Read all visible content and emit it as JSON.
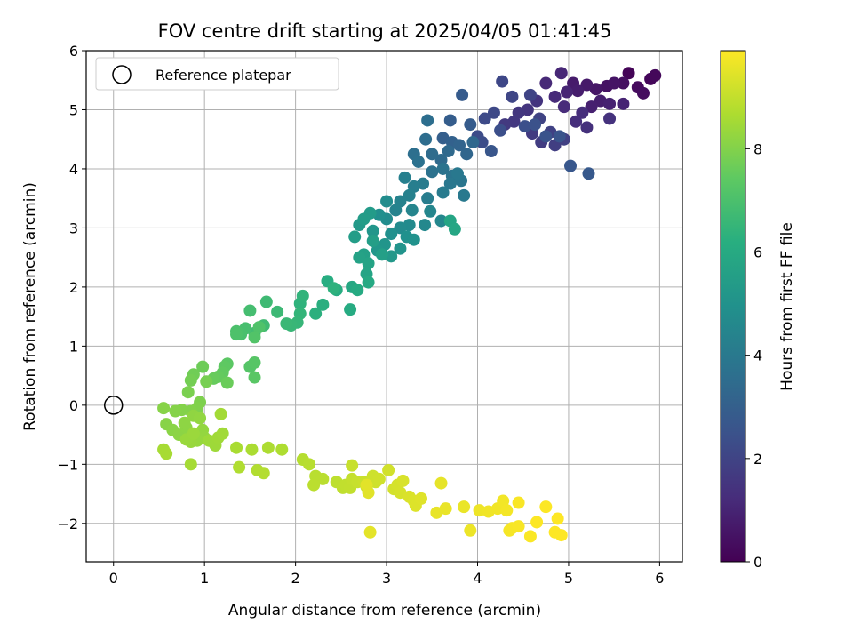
{
  "chart_data": {
    "type": "scatter",
    "title": "FOV centre drift starting at 2025/04/05 01:41:45",
    "xlabel": "Angular distance from reference (arcmin)",
    "ylabel": "Rotation from reference (arcmin)",
    "colorbar_label": "Hours from first FF file",
    "xlim": [
      -0.3,
      6.25
    ],
    "ylim": [
      -2.65,
      6.0
    ],
    "xticks": [
      0,
      1,
      2,
      3,
      4,
      5,
      6
    ],
    "yticks": [
      -2,
      -1,
      0,
      1,
      2,
      3,
      4,
      5,
      6
    ],
    "xtick_labels": [
      "0",
      "1",
      "2",
      "3",
      "4",
      "5",
      "6"
    ],
    "ytick_labels": [
      "−2",
      "−1",
      "0",
      "1",
      "2",
      "3",
      "4",
      "5",
      "6"
    ],
    "colorbar_range": [
      0,
      9.9
    ],
    "colorbar_ticks": [
      0,
      2,
      4,
      6,
      8
    ],
    "colorbar_tick_labels": [
      "0",
      "2",
      "4",
      "6",
      "8"
    ],
    "colormap": "viridis",
    "grid": true,
    "legend": {
      "location": "top-left",
      "entries": [
        "Reference platepar"
      ]
    },
    "reference_point": {
      "x": 0,
      "y": 0
    },
    "points": [
      [
        5.66,
        5.62,
        0.1
      ],
      [
        5.9,
        5.52,
        0.15
      ],
      [
        5.95,
        5.58,
        0.2
      ],
      [
        5.76,
        5.38,
        0.3
      ],
      [
        5.82,
        5.28,
        0.35
      ],
      [
        5.6,
        5.45,
        0.4
      ],
      [
        5.42,
        5.4,
        0.5
      ],
      [
        5.5,
        5.45,
        0.55
      ],
      [
        5.3,
        5.35,
        0.6
      ],
      [
        5.2,
        5.42,
        0.7
      ],
      [
        5.05,
        5.45,
        0.75
      ],
      [
        5.1,
        5.32,
        0.8
      ],
      [
        5.35,
        5.15,
        0.85
      ],
      [
        5.25,
        5.05,
        0.9
      ],
      [
        5.45,
        5.1,
        0.95
      ],
      [
        5.6,
        5.1,
        1.0
      ],
      [
        4.98,
        5.3,
        1.05
      ],
      [
        4.92,
        5.62,
        1.1
      ],
      [
        4.75,
        5.45,
        1.15
      ],
      [
        4.85,
        5.22,
        1.2
      ],
      [
        4.95,
        5.05,
        1.25
      ],
      [
        5.15,
        4.95,
        1.3
      ],
      [
        5.08,
        4.8,
        1.35
      ],
      [
        5.2,
        4.7,
        1.4
      ],
      [
        5.45,
        4.85,
        1.45
      ],
      [
        4.65,
        5.15,
        1.5
      ],
      [
        4.55,
        5.0,
        1.55
      ],
      [
        4.45,
        4.95,
        1.6
      ],
      [
        4.4,
        4.8,
        1.65
      ],
      [
        4.3,
        4.75,
        1.7
      ],
      [
        4.6,
        4.6,
        1.75
      ],
      [
        4.7,
        4.45,
        1.8
      ],
      [
        4.85,
        4.4,
        1.85
      ],
      [
        4.95,
        4.5,
        1.9
      ],
      [
        4.8,
        4.62,
        1.95
      ],
      [
        4.68,
        4.85,
        2.0
      ],
      [
        4.58,
        5.25,
        2.05
      ],
      [
        4.38,
        5.22,
        2.1
      ],
      [
        4.27,
        5.48,
        2.15
      ],
      [
        4.18,
        4.95,
        2.2
      ],
      [
        4.08,
        4.85,
        2.25
      ],
      [
        4.0,
        4.55,
        2.3
      ],
      [
        4.05,
        4.45,
        2.35
      ],
      [
        4.25,
        4.65,
        2.4
      ],
      [
        4.52,
        4.72,
        2.45
      ],
      [
        4.63,
        4.75,
        2.5
      ],
      [
        4.75,
        4.55,
        2.55
      ],
      [
        4.9,
        4.55,
        2.6
      ],
      [
        4.15,
        4.3,
        2.65
      ],
      [
        5.02,
        4.05,
        2.7
      ],
      [
        5.22,
        3.92,
        2.8
      ],
      [
        3.83,
        5.25,
        2.85
      ],
      [
        3.92,
        4.75,
        2.9
      ],
      [
        3.7,
        4.82,
        2.95
      ],
      [
        3.62,
        4.52,
        3.0
      ],
      [
        3.72,
        4.45,
        3.1
      ],
      [
        3.8,
        4.4,
        3.2
      ],
      [
        3.88,
        4.25,
        3.3
      ],
      [
        3.95,
        4.45,
        3.35
      ],
      [
        3.68,
        4.3,
        3.4
      ],
      [
        3.6,
        4.15,
        3.45
      ],
      [
        3.5,
        4.25,
        3.5
      ],
      [
        3.43,
        4.5,
        3.55
      ],
      [
        3.45,
        4.82,
        3.6
      ],
      [
        3.3,
        4.25,
        3.65
      ],
      [
        3.35,
        4.12,
        3.7
      ],
      [
        3.5,
        3.95,
        3.75
      ],
      [
        3.62,
        4.0,
        3.8
      ],
      [
        3.72,
        3.88,
        3.85
      ],
      [
        3.82,
        3.8,
        3.9
      ],
      [
        3.7,
        3.75,
        3.95
      ],
      [
        3.78,
        3.92,
        4.0
      ],
      [
        3.85,
        3.55,
        4.05
      ],
      [
        3.62,
        3.6,
        4.1
      ],
      [
        3.4,
        3.75,
        4.15
      ],
      [
        3.45,
        3.5,
        4.2
      ],
      [
        3.3,
        3.7,
        4.25
      ],
      [
        3.2,
        3.85,
        4.3
      ],
      [
        3.25,
        3.55,
        4.35
      ],
      [
        3.15,
        3.45,
        4.4
      ],
      [
        3.1,
        3.3,
        4.45
      ],
      [
        3.28,
        3.3,
        4.5
      ],
      [
        3.48,
        3.28,
        4.55
      ],
      [
        3.6,
        3.12,
        4.6
      ],
      [
        3.42,
        3.05,
        4.65
      ],
      [
        3.25,
        3.05,
        4.7
      ],
      [
        3.15,
        3.0,
        4.75
      ],
      [
        3.0,
        3.15,
        4.8
      ],
      [
        3.0,
        3.45,
        4.85
      ],
      [
        2.92,
        3.22,
        4.9
      ],
      [
        3.05,
        2.9,
        4.95
      ],
      [
        3.22,
        2.85,
        5.0
      ],
      [
        3.3,
        2.8,
        5.05
      ],
      [
        3.15,
        2.65,
        5.1
      ],
      [
        2.98,
        2.72,
        5.15
      ],
      [
        2.85,
        2.95,
        5.2
      ],
      [
        2.9,
        2.62,
        5.25
      ],
      [
        3.05,
        2.52,
        5.3
      ],
      [
        2.7,
        3.05,
        5.35
      ],
      [
        2.82,
        3.25,
        5.4
      ],
      [
        2.75,
        3.15,
        5.45
      ],
      [
        2.65,
        2.85,
        5.5
      ],
      [
        2.85,
        2.78,
        5.55
      ],
      [
        2.95,
        2.55,
        5.6
      ],
      [
        2.75,
        2.55,
        5.65
      ],
      [
        2.7,
        2.5,
        5.7
      ],
      [
        2.8,
        2.4,
        5.75
      ],
      [
        2.78,
        2.22,
        5.8
      ],
      [
        3.7,
        3.12,
        5.85
      ],
      [
        3.75,
        2.98,
        5.9
      ],
      [
        2.62,
        2.0,
        5.95
      ],
      [
        2.8,
        2.08,
        6.0
      ],
      [
        2.68,
        1.95,
        6.05
      ],
      [
        2.6,
        1.62,
        6.1
      ],
      [
        2.45,
        1.95,
        6.15
      ],
      [
        2.35,
        2.1,
        6.2
      ],
      [
        2.3,
        1.7,
        6.25
      ],
      [
        2.22,
        1.55,
        6.3
      ],
      [
        2.42,
        1.98,
        6.35
      ],
      [
        2.05,
        1.72,
        6.4
      ],
      [
        2.08,
        1.85,
        6.45
      ],
      [
        2.05,
        1.55,
        6.5
      ],
      [
        2.02,
        1.4,
        6.55
      ],
      [
        1.95,
        1.35,
        6.6
      ],
      [
        1.9,
        1.38,
        6.65
      ],
      [
        1.8,
        1.58,
        6.7
      ],
      [
        1.68,
        1.75,
        6.75
      ],
      [
        1.65,
        1.35,
        6.8
      ],
      [
        1.55,
        1.22,
        6.85
      ],
      [
        1.5,
        1.6,
        6.9
      ],
      [
        1.45,
        1.3,
        6.95
      ],
      [
        1.4,
        1.2,
        7.0
      ],
      [
        1.35,
        1.25,
        7.05
      ],
      [
        1.35,
        1.2,
        7.1
      ],
      [
        1.6,
        1.32,
        7.15
      ],
      [
        1.55,
        1.15,
        7.2
      ],
      [
        1.5,
        0.65,
        7.25
      ],
      [
        1.55,
        0.72,
        7.3
      ],
      [
        1.55,
        0.47,
        7.35
      ],
      [
        1.25,
        0.7,
        7.4
      ],
      [
        1.22,
        0.65,
        7.45
      ],
      [
        1.2,
        0.55,
        7.5
      ],
      [
        1.15,
        0.48,
        7.55
      ],
      [
        1.1,
        0.45,
        7.6
      ],
      [
        1.25,
        0.38,
        7.65
      ],
      [
        0.98,
        0.65,
        7.7
      ],
      [
        0.88,
        0.52,
        7.75
      ],
      [
        0.85,
        0.42,
        7.8
      ],
      [
        1.02,
        0.4,
        7.85
      ],
      [
        0.82,
        0.22,
        7.9
      ],
      [
        0.95,
        0.05,
        7.95
      ],
      [
        0.92,
        -0.05,
        8.0
      ],
      [
        0.85,
        -0.1,
        8.02
      ],
      [
        0.75,
        -0.08,
        8.05
      ],
      [
        0.68,
        -0.1,
        8.08
      ],
      [
        0.55,
        -0.05,
        8.1
      ],
      [
        0.58,
        -0.32,
        8.12
      ],
      [
        0.65,
        -0.42,
        8.15
      ],
      [
        0.72,
        -0.5,
        8.18
      ],
      [
        0.8,
        -0.38,
        8.2
      ],
      [
        0.78,
        -0.3,
        8.22
      ],
      [
        0.88,
        -0.18,
        8.25
      ],
      [
        0.95,
        -0.22,
        8.28
      ],
      [
        0.98,
        -0.42,
        8.3
      ],
      [
        1.0,
        -0.55,
        8.32
      ],
      [
        0.92,
        -0.6,
        8.35
      ],
      [
        0.85,
        -0.62,
        8.38
      ],
      [
        0.8,
        -0.58,
        8.4
      ],
      [
        0.88,
        -0.48,
        8.42
      ],
      [
        1.05,
        -0.6,
        8.45
      ],
      [
        1.12,
        -0.68,
        8.48
      ],
      [
        1.15,
        -0.55,
        8.5
      ],
      [
        1.2,
        -0.48,
        8.52
      ],
      [
        1.18,
        -0.15,
        8.55
      ],
      [
        0.85,
        -1.0,
        8.58
      ],
      [
        0.55,
        -0.75,
        8.6
      ],
      [
        0.58,
        -0.82,
        8.62
      ],
      [
        1.35,
        -0.72,
        8.65
      ],
      [
        1.52,
        -0.75,
        8.68
      ],
      [
        1.7,
        -0.72,
        8.7
      ],
      [
        1.85,
        -0.75,
        8.72
      ],
      [
        1.38,
        -1.05,
        8.75
      ],
      [
        1.58,
        -1.1,
        8.78
      ],
      [
        1.65,
        -1.15,
        8.8
      ],
      [
        2.08,
        -0.92,
        8.82
      ],
      [
        2.15,
        -1.0,
        8.85
      ],
      [
        2.22,
        -1.2,
        8.88
      ],
      [
        2.3,
        -1.25,
        8.9
      ],
      [
        2.2,
        -1.35,
        8.92
      ],
      [
        2.45,
        -1.3,
        8.95
      ],
      [
        2.52,
        -1.4,
        8.98
      ],
      [
        2.55,
        -1.35,
        9.0
      ],
      [
        2.6,
        -1.4,
        9.02
      ],
      [
        2.62,
        -1.25,
        9.05
      ],
      [
        2.68,
        -1.3,
        9.08
      ],
      [
        2.62,
        -1.02,
        9.1
      ],
      [
        2.75,
        -1.3,
        9.12
      ],
      [
        2.78,
        -1.38,
        9.15
      ],
      [
        2.85,
        -1.2,
        9.18
      ],
      [
        2.88,
        -1.3,
        9.2
      ],
      [
        2.92,
        -1.25,
        9.22
      ],
      [
        3.02,
        -1.1,
        9.25
      ],
      [
        3.08,
        -1.42,
        9.28
      ],
      [
        3.12,
        -1.35,
        9.3
      ],
      [
        3.15,
        -1.48,
        9.32
      ],
      [
        3.18,
        -1.28,
        9.35
      ],
      [
        3.25,
        -1.55,
        9.38
      ],
      [
        3.3,
        -1.62,
        9.4
      ],
      [
        3.32,
        -1.7,
        9.42
      ],
      [
        3.38,
        -1.58,
        9.45
      ],
      [
        2.8,
        -1.48,
        9.48
      ],
      [
        2.78,
        -1.35,
        9.5
      ],
      [
        2.82,
        -2.15,
        9.52
      ],
      [
        3.6,
        -1.32,
        9.55
      ],
      [
        3.55,
        -1.82,
        9.58
      ],
      [
        3.65,
        -1.75,
        9.6
      ],
      [
        3.85,
        -1.72,
        9.62
      ],
      [
        3.92,
        -2.12,
        9.65
      ],
      [
        4.02,
        -1.78,
        9.68
      ],
      [
        4.12,
        -1.8,
        9.7
      ],
      [
        4.22,
        -1.75,
        9.72
      ],
      [
        4.28,
        -1.62,
        9.74
      ],
      [
        4.32,
        -1.78,
        9.76
      ],
      [
        4.35,
        -2.12,
        9.78
      ],
      [
        4.38,
        -2.08,
        9.8
      ],
      [
        4.45,
        -2.05,
        9.82
      ],
      [
        4.45,
        -1.65,
        9.84
      ],
      [
        4.58,
        -2.22,
        9.86
      ],
      [
        4.65,
        -1.98,
        9.88
      ],
      [
        4.75,
        -1.72,
        9.89
      ],
      [
        4.85,
        -2.15,
        9.9
      ],
      [
        4.88,
        -1.92,
        9.9
      ],
      [
        4.92,
        -2.2,
        9.9
      ]
    ]
  }
}
